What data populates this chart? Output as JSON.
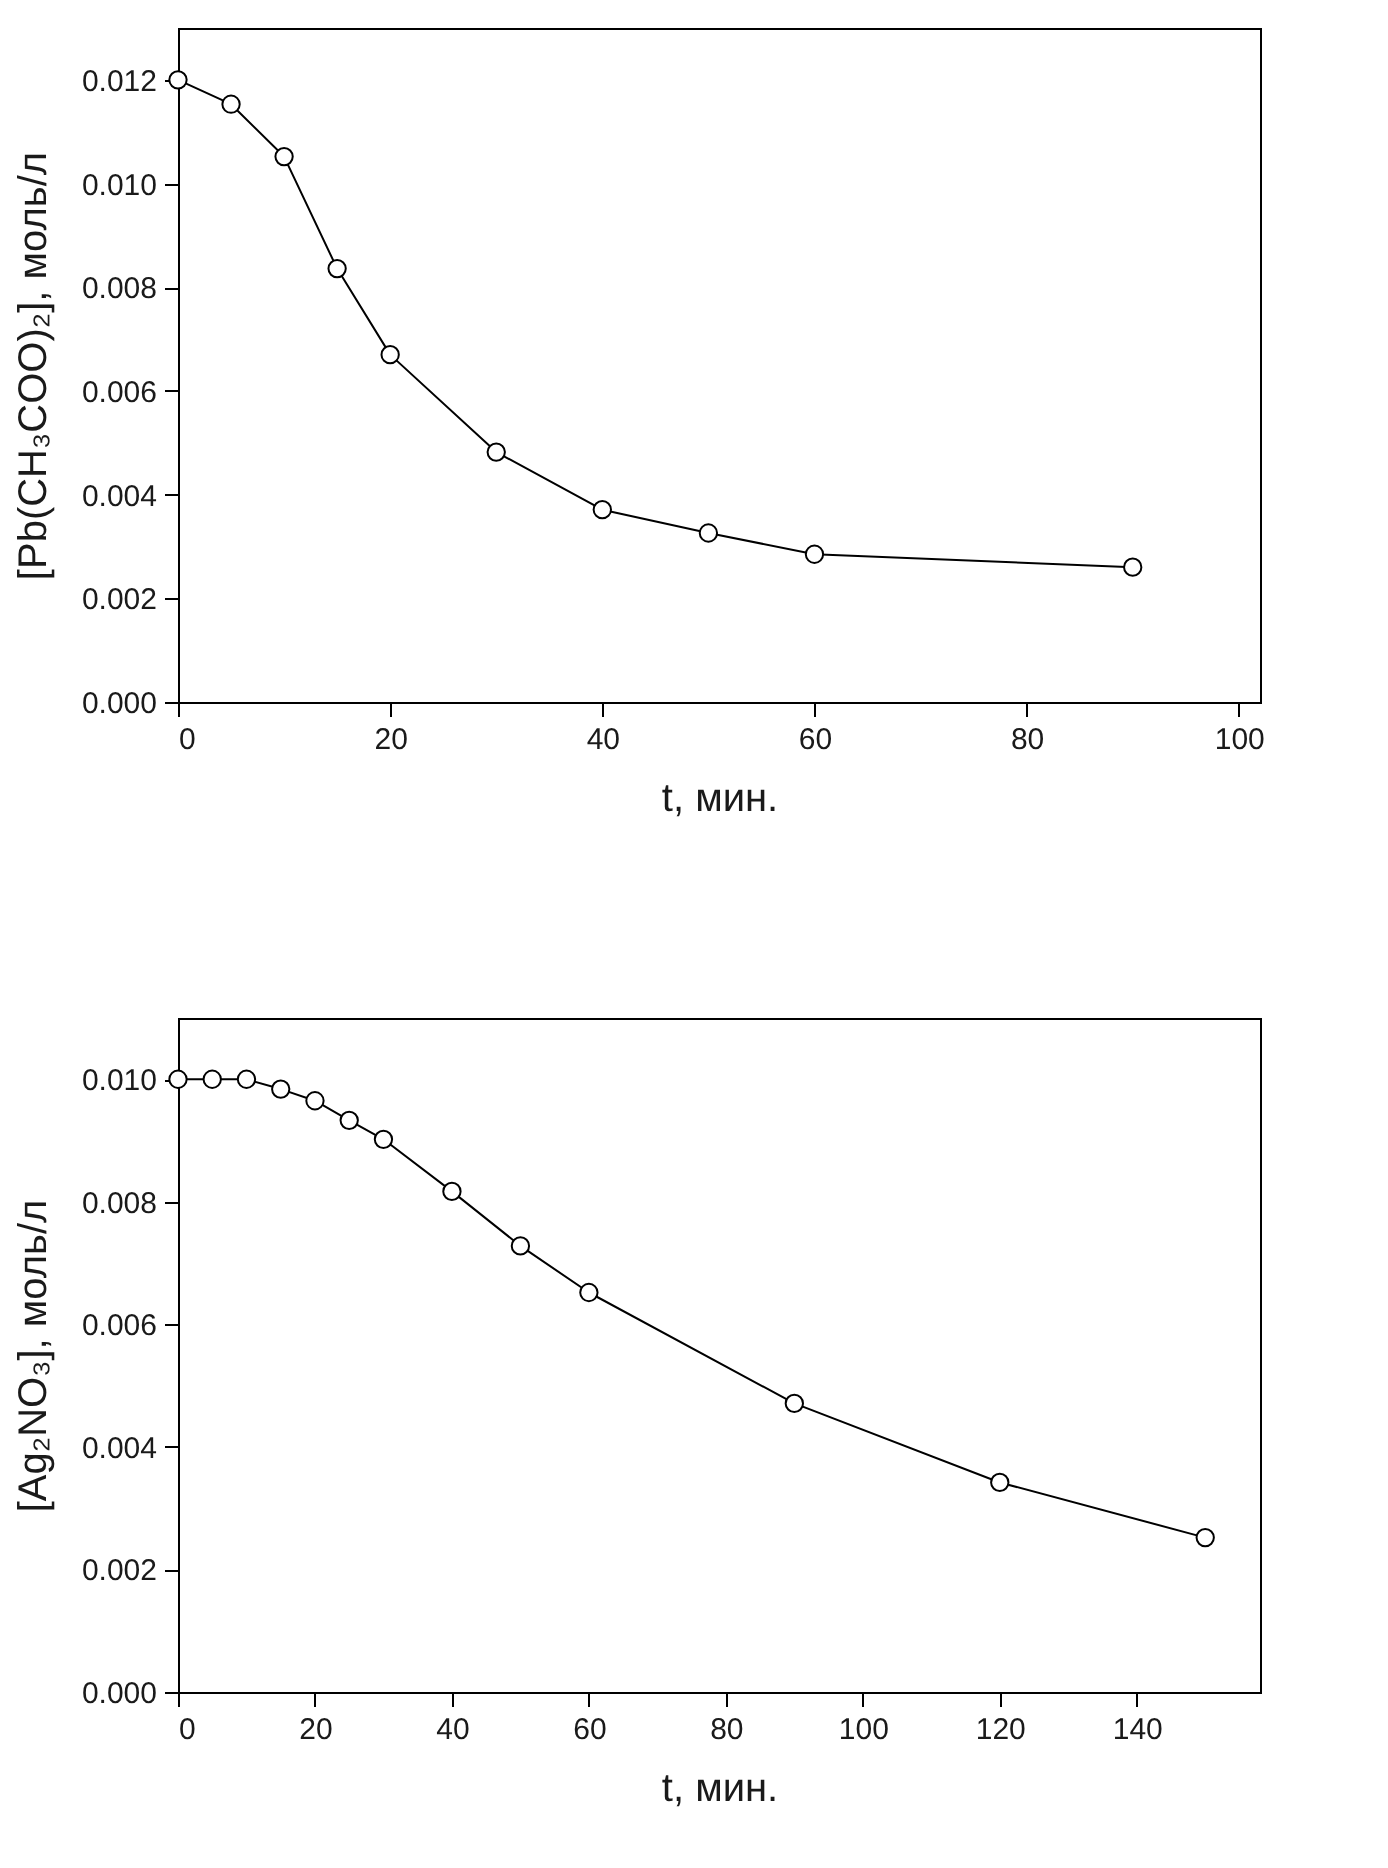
{
  "chart_data": [
    {
      "type": "line",
      "xlabel": "t, мин.",
      "ylabel": "[Pb(CH₃COO)₂], моль/л",
      "marker": "circle",
      "line_style": "solid",
      "x": [
        0,
        5,
        10,
        15,
        20,
        30,
        40,
        50,
        60,
        90
      ],
      "series": [
        {
          "color": "#000000",
          "values": [
            0.012,
            0.01153,
            0.01052,
            0.00836,
            0.0067,
            0.00482,
            0.00371,
            0.00326,
            0.00285,
            0.0026
          ]
        }
      ],
      "xlim": [
        0,
        102
      ],
      "xticks": [
        0,
        20,
        40,
        60,
        80,
        100
      ],
      "ylim": [
        0,
        0.013
      ],
      "yticks": [
        {
          "value": 0,
          "label": "0.000"
        },
        {
          "value": 0.002,
          "label": "0.002"
        },
        {
          "value": 0.004,
          "label": "0.004"
        },
        {
          "value": 0.006,
          "label": "0.006"
        },
        {
          "value": 0.008,
          "label": "0.008"
        },
        {
          "value": 0.01,
          "label": "0.010"
        },
        {
          "value": 0.012,
          "label": "0.012"
        }
      ]
    },
    {
      "type": "line",
      "xlabel": "t, мин.",
      "ylabel": "[Ag₂NO₃], моль/л",
      "marker": "circle",
      "line_style": "solid",
      "x": [
        0,
        5,
        10,
        15,
        20,
        25,
        30,
        40,
        50,
        60,
        90,
        120,
        150
      ],
      "series": [
        {
          "color": "#000000",
          "values": [
            0.01,
            0.01,
            0.01,
            0.00984,
            0.00965,
            0.00933,
            0.00902,
            0.00817,
            0.00728,
            0.00652,
            0.00471,
            0.00342,
            0.00252
          ]
        }
      ],
      "xlim": [
        0,
        158
      ],
      "xticks": [
        0,
        20,
        40,
        60,
        80,
        100,
        120,
        140
      ],
      "ylim": [
        0,
        0.011
      ],
      "yticks": [
        {
          "value": 0,
          "label": "0.000"
        },
        {
          "value": 0.002,
          "label": "0.002"
        },
        {
          "value": 0.004,
          "label": "0.004"
        },
        {
          "value": 0.006,
          "label": "0.006"
        },
        {
          "value": 0.008,
          "label": "0.008"
        },
        {
          "value": 0.01,
          "label": "0.010"
        }
      ]
    }
  ]
}
